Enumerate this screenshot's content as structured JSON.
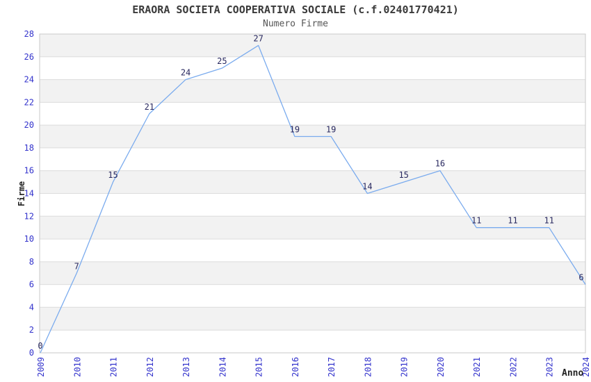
{
  "header": {
    "title": "ERAORA SOCIETA COOPERATIVA SOCIALE (c.f.02401770421)",
    "subtitle": "Numero Firme"
  },
  "chart_data": {
    "type": "line",
    "title": "ERAORA SOCIETA COOPERATIVA SOCIALE (c.f.02401770421)",
    "subtitle": "Numero Firme",
    "xlabel": "Anno",
    "ylabel": "Firme",
    "categories": [
      "2009",
      "2010",
      "2011",
      "2012",
      "2013",
      "2014",
      "2015",
      "2016",
      "2017",
      "2018",
      "2019",
      "2020",
      "2021",
      "2022",
      "2023",
      "2024"
    ],
    "series": [
      {
        "name": "Numero Firme",
        "values": [
          0,
          7,
          15,
          21,
          24,
          25,
          27,
          19,
          19,
          14,
          15,
          16,
          11,
          11,
          11,
          6
        ]
      }
    ],
    "ylim": [
      0,
      28
    ],
    "ytick_step": 2,
    "grid": true,
    "alternating_bands": true,
    "point_labels": true,
    "legend_position": "none"
  },
  "style": {
    "background": "#ffffff",
    "band_color": "#f2f2f2",
    "grid_color": "#dcdcdc",
    "border_color": "#c9c9c9",
    "line_color": "#7aabee",
    "tick_label_color": "#3333cc",
    "point_label_color": "#28285f",
    "title_color": "#3a3a3a",
    "subtitle_color": "#555555",
    "axis_title_color": "#222222"
  }
}
